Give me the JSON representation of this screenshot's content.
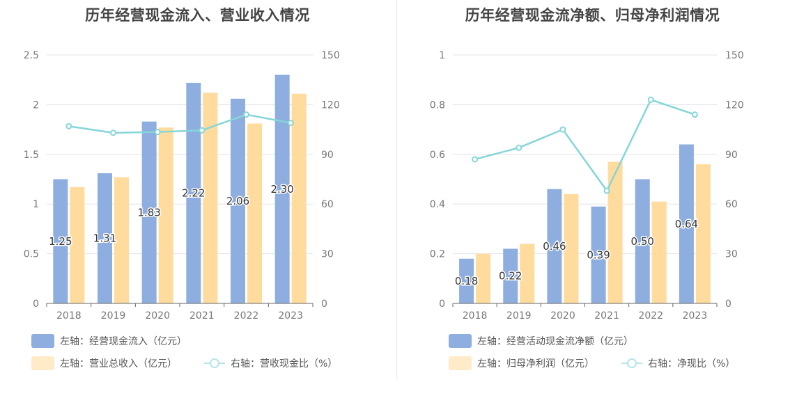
{
  "colors": {
    "bar1": "#8daede",
    "bar2": "#ffdb9d",
    "line": "#85d6d8",
    "axis": "#666666",
    "grid": "#e0e3ec",
    "tick_text": "#777777"
  },
  "chart_data": [
    {
      "type": "bar",
      "title": "历年经营现金流入、营业收入情况",
      "categories": [
        "2018",
        "2019",
        "2020",
        "2021",
        "2022",
        "2023"
      ],
      "left_axis": {
        "ylim": [
          0,
          2.5
        ],
        "ticks": [
          "0",
          "0.5",
          "1",
          "1.5",
          "2",
          "2.5"
        ]
      },
      "right_axis": {
        "ylim": [
          0,
          150
        ],
        "ticks": [
          "0",
          "30",
          "60",
          "90",
          "120",
          "150"
        ]
      },
      "series": [
        {
          "name": "左轴：经营现金流入（亿元）",
          "kind": "bar",
          "axis": "left",
          "values": [
            1.25,
            1.31,
            1.83,
            2.22,
            2.06,
            2.3
          ],
          "labels": [
            "1.25",
            "1.31",
            "1.83",
            "2.22",
            "2.06",
            "2.30"
          ]
        },
        {
          "name": "左轴：营业总收入（亿元）",
          "kind": "bar",
          "axis": "left",
          "values": [
            1.17,
            1.27,
            1.77,
            2.12,
            1.81,
            2.11
          ]
        },
        {
          "name": "右轴：营收现金比（%）",
          "kind": "line",
          "axis": "right",
          "values": [
            107,
            103,
            103.5,
            104.5,
            114,
            109
          ]
        }
      ],
      "legend_rows": [
        [
          0
        ],
        [
          1,
          2
        ]
      ]
    },
    {
      "type": "bar",
      "title": "历年经营现金流净额、归母净利润情况",
      "categories": [
        "2018",
        "2019",
        "2020",
        "2021",
        "2022",
        "2023"
      ],
      "left_axis": {
        "ylim": [
          0,
          1
        ],
        "ticks": [
          "0",
          "0.2",
          "0.4",
          "0.6",
          "0.8",
          "1"
        ]
      },
      "right_axis": {
        "ylim": [
          0,
          150
        ],
        "ticks": [
          "0",
          "30",
          "60",
          "90",
          "120",
          "150"
        ]
      },
      "series": [
        {
          "name": "左轴：经营活动现金流净额（亿元）",
          "kind": "bar",
          "axis": "left",
          "values": [
            0.18,
            0.22,
            0.46,
            0.39,
            0.5,
            0.64
          ],
          "labels": [
            "0.18",
            "0.22",
            "0.46",
            "0.39",
            "0.50",
            "0.64"
          ]
        },
        {
          "name": "左轴：归母净利润（亿元）",
          "kind": "bar",
          "axis": "left",
          "values": [
            0.2,
            0.24,
            0.44,
            0.57,
            0.41,
            0.56
          ]
        },
        {
          "name": "右轴：净现比（%）",
          "kind": "line",
          "axis": "right",
          "values": [
            87,
            94,
            105,
            68,
            123,
            114
          ]
        }
      ],
      "legend_rows": [
        [
          0
        ],
        [
          1,
          2
        ]
      ]
    }
  ]
}
